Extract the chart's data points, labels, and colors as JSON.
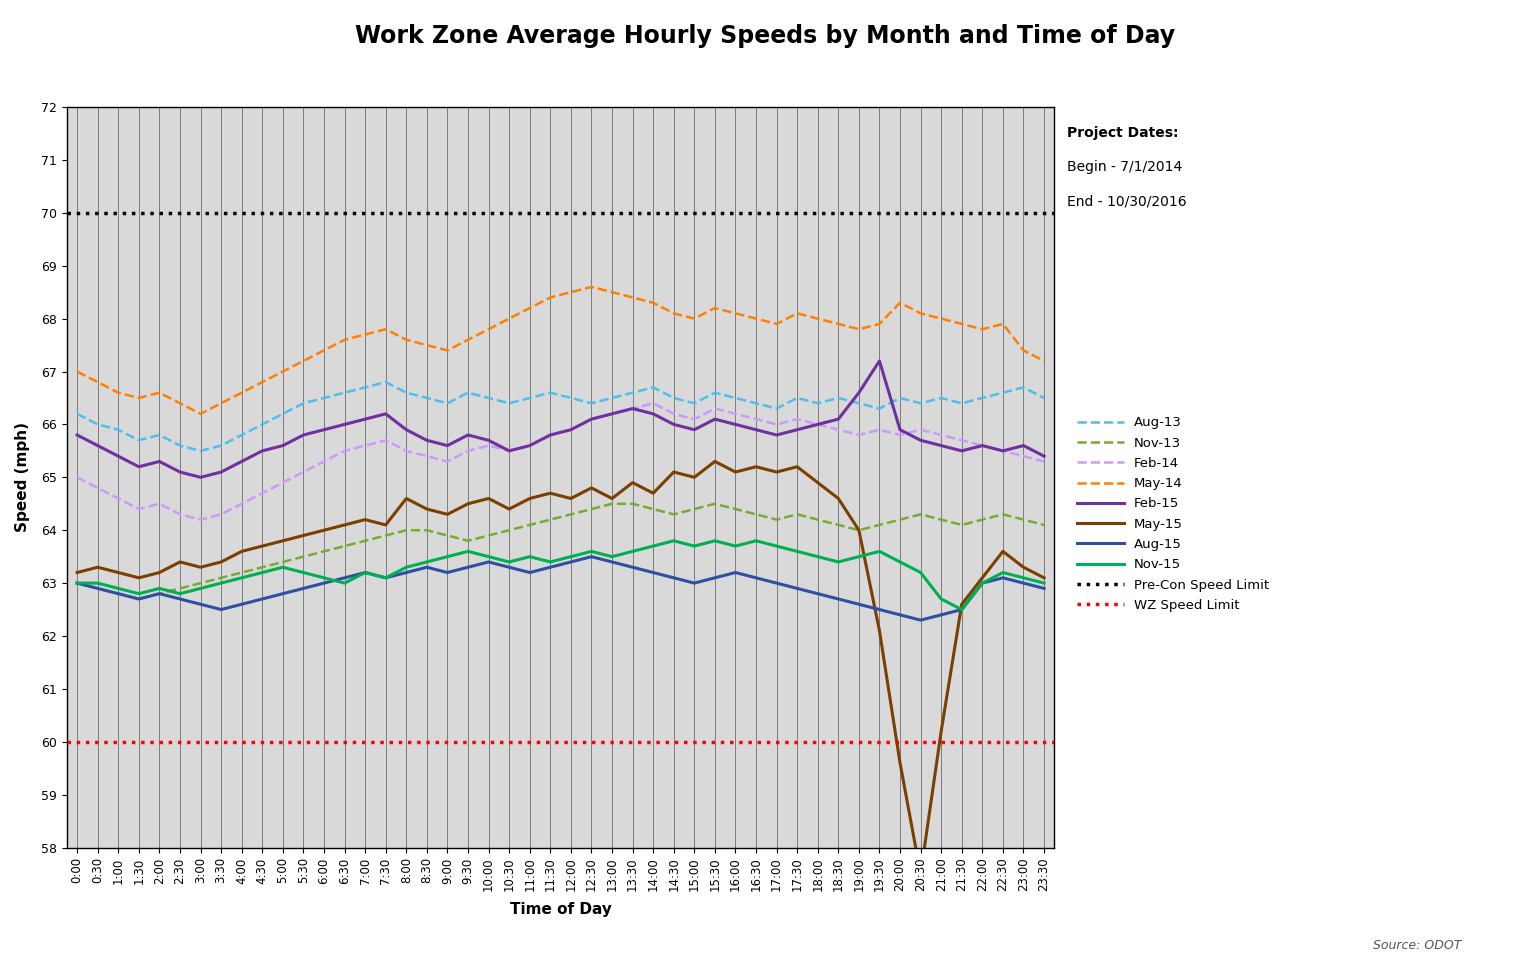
{
  "title": "Work Zone Average Hourly Speeds by Month and Time of Day",
  "xlabel": "Time of Day",
  "ylabel": "Speed (mph)",
  "ylim": [
    58,
    72
  ],
  "yticks": [
    58,
    59,
    60,
    61,
    62,
    63,
    64,
    65,
    66,
    67,
    68,
    69,
    70,
    71,
    72
  ],
  "time_labels": [
    "0:00",
    "0:30",
    "1:00",
    "1:30",
    "2:00",
    "2:30",
    "3:00",
    "3:30",
    "4:00",
    "4:30",
    "5:00",
    "5:30",
    "6:00",
    "6:30",
    "7:00",
    "7:30",
    "8:00",
    "8:30",
    "9:00",
    "9:30",
    "10:00",
    "10:30",
    "11:00",
    "11:30",
    "12:00",
    "12:30",
    "13:00",
    "13:30",
    "14:00",
    "14:30",
    "15:00",
    "15:30",
    "16:00",
    "16:30",
    "17:00",
    "17:30",
    "18:00",
    "18:30",
    "19:00",
    "19:30",
    "20:00",
    "20:30",
    "21:00",
    "21:30",
    "22:00",
    "22:30",
    "23:00",
    "23:30"
  ],
  "pre_con_speed": 70,
  "wz_speed": 60,
  "project_dates_title": "Project Dates:",
  "project_begin": "Begin - 7/1/2014",
  "project_end": "End - 10/30/2016",
  "source_text": "Source: ODOT",
  "background_color": "#D9D9D9",
  "series": [
    {
      "name": "Aug-13",
      "color": "#4DBEEE",
      "style": "--",
      "linewidth": 1.8,
      "data": [
        66.2,
        66.0,
        65.9,
        65.7,
        65.8,
        65.6,
        65.5,
        65.6,
        65.8,
        66.0,
        66.2,
        66.4,
        66.5,
        66.6,
        66.7,
        66.8,
        66.6,
        66.5,
        66.4,
        66.6,
        66.5,
        66.4,
        66.5,
        66.6,
        66.5,
        66.4,
        66.5,
        66.6,
        66.7,
        66.5,
        66.4,
        66.6,
        66.5,
        66.4,
        66.3,
        66.5,
        66.4,
        66.5,
        66.4,
        66.3,
        66.5,
        66.4,
        66.5,
        66.4,
        66.5,
        66.6,
        66.7,
        66.5
      ]
    },
    {
      "name": "Nov-13",
      "color": "#77AC30",
      "style": "--",
      "linewidth": 1.8,
      "data": [
        63.0,
        62.9,
        62.8,
        62.7,
        62.8,
        62.9,
        63.0,
        63.1,
        63.2,
        63.3,
        63.4,
        63.5,
        63.6,
        63.7,
        63.8,
        63.9,
        64.0,
        64.0,
        63.9,
        63.8,
        63.9,
        64.0,
        64.1,
        64.2,
        64.3,
        64.4,
        64.5,
        64.5,
        64.4,
        64.3,
        64.4,
        64.5,
        64.4,
        64.3,
        64.2,
        64.3,
        64.2,
        64.1,
        64.0,
        64.1,
        64.2,
        64.3,
        64.2,
        64.1,
        64.2,
        64.3,
        64.2,
        64.1
      ]
    },
    {
      "name": "Feb-14",
      "color": "#CC99FF",
      "style": "--",
      "linewidth": 1.8,
      "data": [
        65.0,
        64.8,
        64.6,
        64.4,
        64.5,
        64.3,
        64.2,
        64.3,
        64.5,
        64.7,
        64.9,
        65.1,
        65.3,
        65.5,
        65.6,
        65.7,
        65.5,
        65.4,
        65.3,
        65.5,
        65.6,
        65.5,
        65.6,
        65.8,
        65.9,
        66.1,
        66.2,
        66.3,
        66.4,
        66.2,
        66.1,
        66.3,
        66.2,
        66.1,
        66.0,
        66.1,
        66.0,
        65.9,
        65.8,
        65.9,
        65.8,
        65.9,
        65.8,
        65.7,
        65.6,
        65.5,
        65.4,
        65.3
      ]
    },
    {
      "name": "May-14",
      "color": "#FF8000",
      "style": "--",
      "linewidth": 1.8,
      "data": [
        67.0,
        66.8,
        66.6,
        66.5,
        66.6,
        66.4,
        66.2,
        66.4,
        66.6,
        66.8,
        67.0,
        67.2,
        67.4,
        67.6,
        67.7,
        67.8,
        67.6,
        67.5,
        67.4,
        67.6,
        67.8,
        68.0,
        68.2,
        68.4,
        68.5,
        68.6,
        68.5,
        68.4,
        68.3,
        68.1,
        68.0,
        68.2,
        68.1,
        68.0,
        67.9,
        68.1,
        68.0,
        67.9,
        67.8,
        67.9,
        68.3,
        68.1,
        68.0,
        67.9,
        67.8,
        67.9,
        67.4,
        67.2
      ]
    },
    {
      "name": "Feb-15",
      "color": "#7030A0",
      "style": "-",
      "linewidth": 2.2,
      "data": [
        65.8,
        65.6,
        65.4,
        65.2,
        65.3,
        65.1,
        65.0,
        65.1,
        65.3,
        65.5,
        65.6,
        65.8,
        65.9,
        66.0,
        66.1,
        66.2,
        65.9,
        65.7,
        65.6,
        65.8,
        65.7,
        65.5,
        65.6,
        65.8,
        65.9,
        66.1,
        66.2,
        66.3,
        66.2,
        66.0,
        65.9,
        66.1,
        66.0,
        65.9,
        65.8,
        65.9,
        66.0,
        66.1,
        66.6,
        67.2,
        65.9,
        65.7,
        65.6,
        65.5,
        65.6,
        65.5,
        65.6,
        65.4
      ]
    },
    {
      "name": "May-15",
      "color": "#7B3F00",
      "style": "-",
      "linewidth": 2.2,
      "data": [
        63.2,
        63.3,
        63.2,
        63.1,
        63.2,
        63.4,
        63.3,
        63.4,
        63.6,
        63.7,
        63.8,
        63.9,
        64.0,
        64.1,
        64.2,
        64.1,
        64.6,
        64.4,
        64.3,
        64.5,
        64.6,
        64.4,
        64.6,
        64.7,
        64.6,
        64.8,
        64.6,
        64.9,
        64.7,
        65.1,
        65.0,
        65.3,
        65.1,
        65.2,
        65.1,
        65.2,
        64.9,
        64.6,
        64.0,
        62.1,
        59.6,
        57.5,
        60.2,
        62.6,
        63.1,
        63.6,
        63.3,
        63.1
      ]
    },
    {
      "name": "Aug-15",
      "color": "#2E4FA3",
      "style": "-",
      "linewidth": 2.2,
      "data": [
        63.0,
        62.9,
        62.8,
        62.7,
        62.8,
        62.7,
        62.6,
        62.5,
        62.6,
        62.7,
        62.8,
        62.9,
        63.0,
        63.1,
        63.2,
        63.1,
        63.2,
        63.3,
        63.2,
        63.3,
        63.4,
        63.3,
        63.2,
        63.3,
        63.4,
        63.5,
        63.4,
        63.3,
        63.2,
        63.1,
        63.0,
        63.1,
        63.2,
        63.1,
        63.0,
        62.9,
        62.8,
        62.7,
        62.6,
        62.5,
        62.4,
        62.3,
        62.4,
        62.5,
        63.0,
        63.1,
        63.0,
        62.9
      ]
    },
    {
      "name": "Nov-15",
      "color": "#00B050",
      "style": "-",
      "linewidth": 2.2,
      "data": [
        63.0,
        63.0,
        62.9,
        62.8,
        62.9,
        62.8,
        62.9,
        63.0,
        63.1,
        63.2,
        63.3,
        63.2,
        63.1,
        63.0,
        63.2,
        63.1,
        63.3,
        63.4,
        63.5,
        63.6,
        63.5,
        63.4,
        63.5,
        63.4,
        63.5,
        63.6,
        63.5,
        63.6,
        63.7,
        63.8,
        63.7,
        63.8,
        63.7,
        63.8,
        63.7,
        63.6,
        63.5,
        63.4,
        63.5,
        63.6,
        63.4,
        63.2,
        62.7,
        62.5,
        63.0,
        63.2,
        63.1,
        63.0
      ]
    }
  ]
}
